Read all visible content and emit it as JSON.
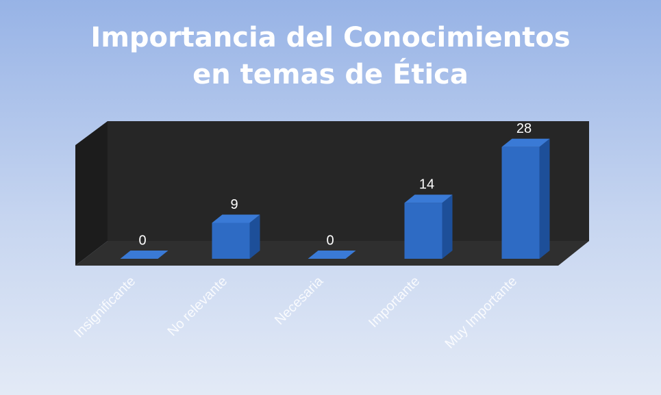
{
  "chart_data": {
    "type": "bar",
    "title": "Importancia del Conocimientos en temas de Ética",
    "categories": [
      "Insignificante",
      "No relevante",
      "Necesaria",
      "Importante",
      "Muy Importante"
    ],
    "values": [
      0,
      9,
      0,
      14,
      28
    ],
    "color": "#2e6bc4",
    "ylim": [
      0,
      30
    ]
  }
}
